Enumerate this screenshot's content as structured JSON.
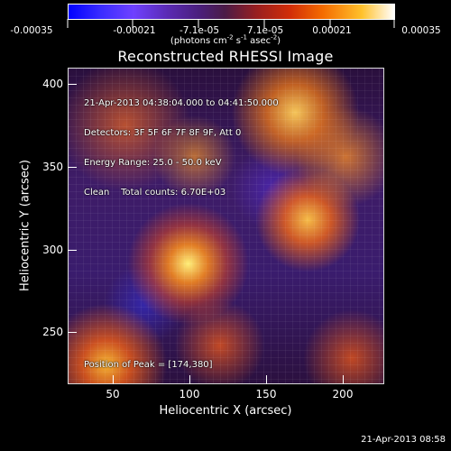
{
  "colorbar": {
    "labels": [
      "-0.00035",
      "-0.00021",
      "-7.1e-05",
      "7.1e-05",
      "0.00021",
      "0.00035"
    ],
    "units_prefix": "(photons cm",
    "units_cm_power": "-2",
    "units_mid": " s",
    "units_s_power": "-1",
    "units_suffix": " asec",
    "units_asec_power": "-2",
    "units_close": ")"
  },
  "plot": {
    "title": "Reconstructed RHESSI Image",
    "info_line_1": "21-Apr-2013 04:38:04.000 to 04:41:50.000",
    "info_line_2": "Detectors: 3F 5F 6F 7F 8F 9F, Att 0",
    "info_line_3": "Energy Range: 25.0 - 50.0 keV",
    "info_line_4": "Clean    Total counts: 6.70E+03",
    "peak_text": "Position of Peak = [174,380]",
    "x_label": "Heliocentric X (arcsec)",
    "y_label": "Heliocentric Y (arcsec)",
    "x_ticks": [
      "50",
      "100",
      "150",
      "200"
    ],
    "y_ticks": [
      "400",
      "350",
      "300",
      "250"
    ]
  },
  "footer": {
    "timestamp": "21-Apr-2013 08:58"
  },
  "colors": {
    "background": "#000000",
    "text": "#ffffff",
    "frame": "#d9d9d9"
  }
}
